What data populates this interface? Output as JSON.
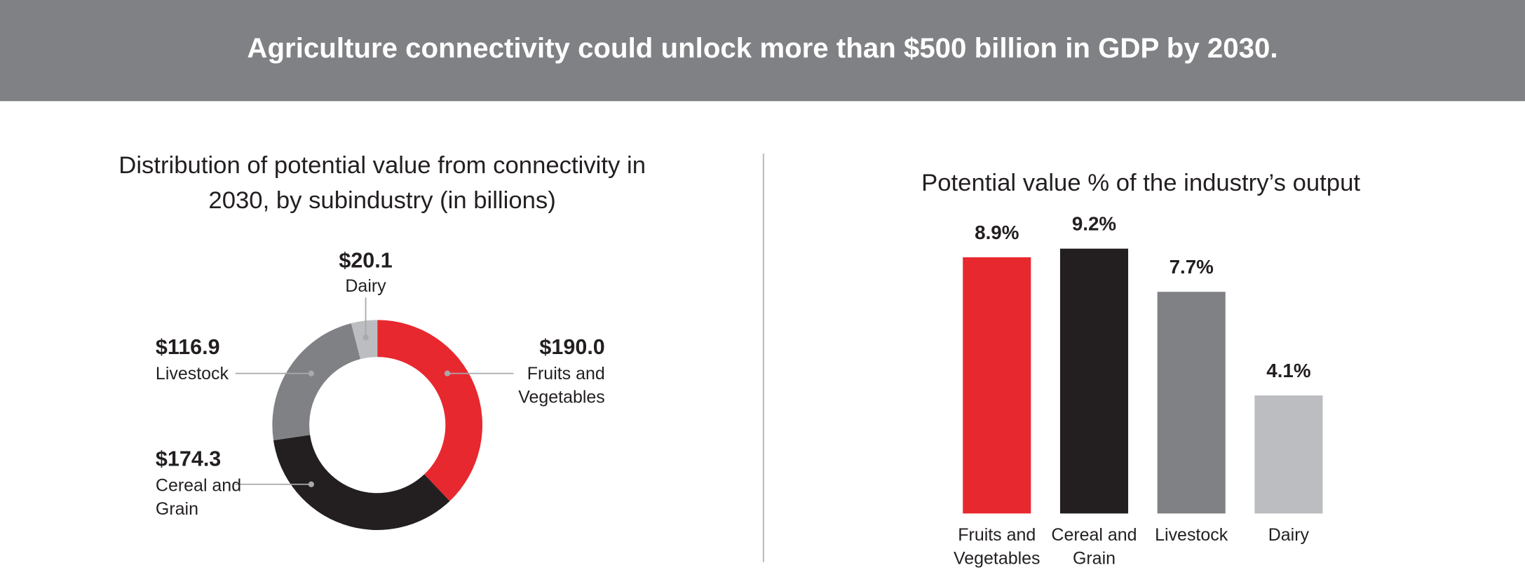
{
  "header": {
    "title": "Agriculture connectivity could unlock more than $500 billion in GDP by 2030."
  },
  "chart_data": [
    {
      "type": "donut",
      "title": "Distribution of potential value from connectivity in 2030, by subindustry (in billions)",
      "categories": [
        "Fruits and Vegetables",
        "Cereal and Grain",
        "Livestock",
        "Dairy"
      ],
      "values": [
        190.0,
        174.3,
        116.9,
        20.1
      ],
      "value_labels": [
        "$190.0",
        "$174.3",
        "$116.9",
        "$20.1"
      ],
      "colors": [
        "#e8282f",
        "#231f20",
        "#808184",
        "#bcbdc0"
      ]
    },
    {
      "type": "bar",
      "title": "Potential value % of the industry’s output",
      "categories": [
        "Fruits and Vegetables",
        "Cereal and Grain",
        "Livestock",
        "Dairy"
      ],
      "values": [
        8.9,
        9.2,
        7.7,
        4.1
      ],
      "value_labels": [
        "8.9%",
        "9.2%",
        "7.7%",
        "4.1%"
      ],
      "colors": [
        "#e8282f",
        "#231f20",
        "#808184",
        "#bcbdc0"
      ]
    }
  ]
}
